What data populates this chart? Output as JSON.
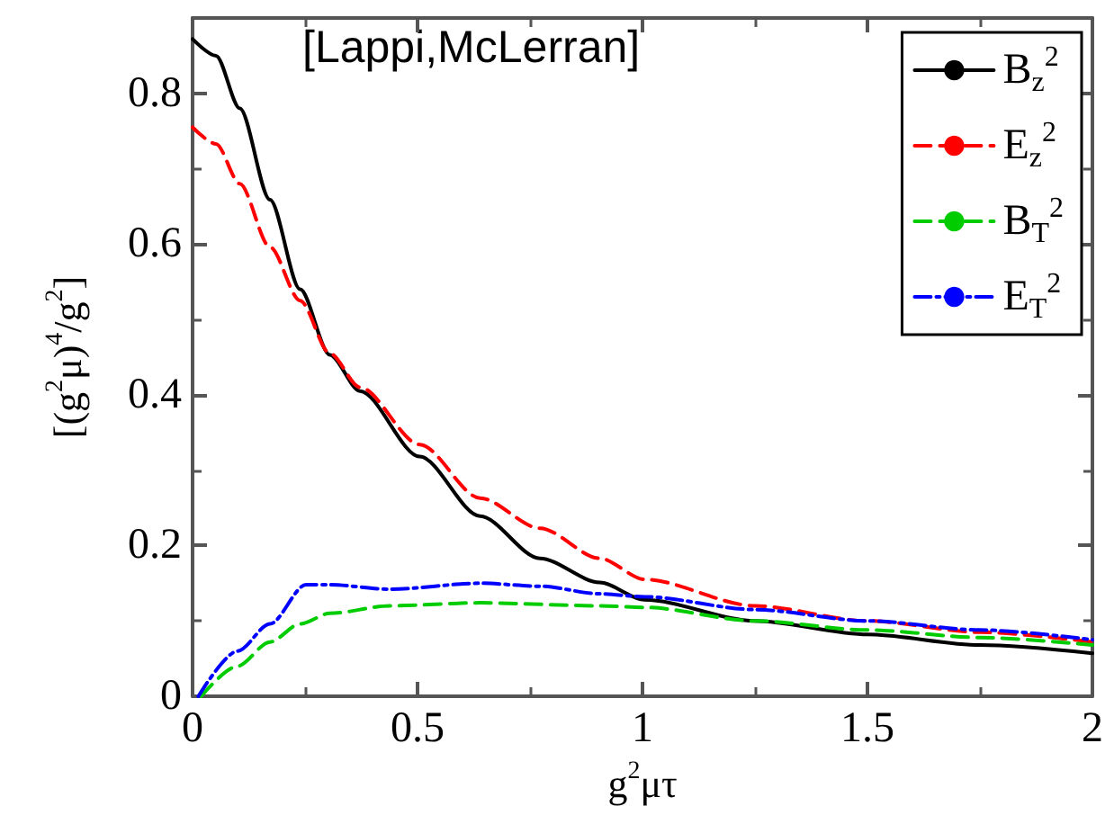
{
  "chart_data": {
    "type": "line",
    "xlabel": "g$^{2}$μτ",
    "ylabel": "[(g$^{2}$μ)$^{4}$/g$^{2}$]",
    "annotations": [
      "[Lappi,McLerran]"
    ],
    "xlim": [
      0,
      2
    ],
    "xticks": [
      0,
      0.5,
      1,
      1.5,
      2
    ],
    "ylim": [
      0,
      0.9
    ],
    "yticks": [
      0,
      0.2,
      0.4,
      0.6,
      0.8
    ],
    "grid": false,
    "legend": "top right",
    "marker": "none",
    "series": [
      {
        "name": "B$_{z}$$^{2}$",
        "color": "#000000",
        "line_style": "solid",
        "x": [
          0,
          0.052,
          0.105,
          0.172,
          0.239,
          0.305,
          0.372,
          0.505,
          0.639,
          0.772,
          0.905,
          1.005,
          1.25,
          1.5,
          1.75,
          2
        ],
        "values": [
          0.872,
          0.85,
          0.78,
          0.659,
          0.54,
          0.453,
          0.405,
          0.318,
          0.239,
          0.183,
          0.151,
          0.128,
          0.1,
          0.082,
          0.068,
          0.057
        ]
      },
      {
        "name": "E$_{z}$$^{2}$",
        "color": "#ff0000",
        "line_style": "dashed",
        "x": [
          0,
          0.052,
          0.105,
          0.172,
          0.239,
          0.305,
          0.372,
          0.505,
          0.639,
          0.772,
          0.905,
          1.005,
          1.25,
          1.5,
          1.75,
          2
        ],
        "values": [
          0.755,
          0.733,
          0.68,
          0.596,
          0.525,
          0.455,
          0.41,
          0.334,
          0.263,
          0.223,
          0.183,
          0.155,
          0.12,
          0.1,
          0.085,
          0.072
        ]
      },
      {
        "name": "B$_{T}$$^{2}$",
        "color": "#00cc00",
        "line_style": "dashed",
        "x": [
          0.019,
          0.1,
          0.172,
          0.239,
          0.305,
          0.439,
          0.639,
          0.905,
          1.005,
          1.25,
          1.5,
          1.75,
          2
        ],
        "values": [
          0,
          0.04,
          0.072,
          0.096,
          0.11,
          0.12,
          0.124,
          0.12,
          0.118,
          0.1,
          0.088,
          0.078,
          0.068
        ]
      },
      {
        "name": "E$_{T}$$^{2}$",
        "color": "#0000ff",
        "line_style": "dashdot",
        "x": [
          0.013,
          0.1,
          0.172,
          0.252,
          0.305,
          0.439,
          0.639,
          0.772,
          0.905,
          1.005,
          1.25,
          1.5,
          1.75,
          2
        ],
        "values": [
          0,
          0.06,
          0.096,
          0.148,
          0.148,
          0.142,
          0.15,
          0.146,
          0.136,
          0.132,
          0.115,
          0.1,
          0.088,
          0.075
        ]
      }
    ]
  }
}
